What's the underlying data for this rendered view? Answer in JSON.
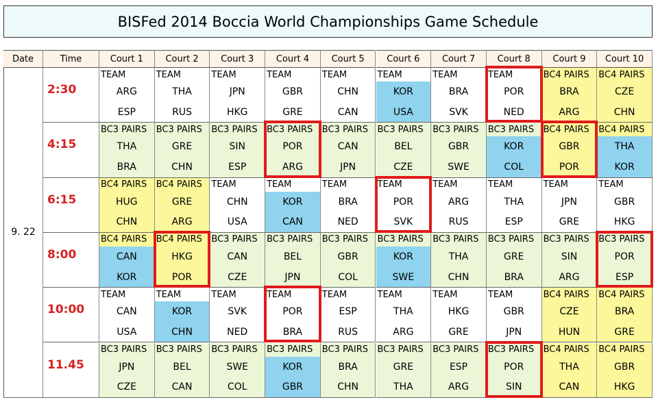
{
  "title": "BISFed 2014 Boccia World Championships Game Schedule",
  "headers": [
    "Date",
    "Time",
    "Court 1",
    "Court 2",
    "Court 3",
    "Court 4",
    "Court 5",
    "Court 6",
    "Court 7",
    "Court 8",
    "Court 9",
    "Court 10"
  ],
  "date": "9. 22",
  "slots": [
    {
      "time": "2:30",
      "games": [
        {
          "category": "TEAM",
          "teams": [
            "ARG",
            "ESP"
          ]
        },
        {
          "category": "TEAM",
          "teams": [
            "THA",
            "RUS"
          ]
        },
        {
          "category": "TEAM",
          "teams": [
            "JPN",
            "HKG"
          ]
        },
        {
          "category": "TEAM",
          "teams": [
            "GBR",
            "GRE"
          ]
        },
        {
          "category": "TEAM",
          "teams": [
            "CHN",
            "CAN"
          ]
        },
        {
          "category": "TEAM",
          "teams": [
            "KOR",
            "USA"
          ],
          "highlight": true
        },
        {
          "category": "TEAM",
          "teams": [
            "BRA",
            "SVK"
          ]
        },
        {
          "category": "TEAM",
          "teams": [
            "POR",
            "NED"
          ],
          "marked": true
        },
        {
          "category": "BC4 PAIRS",
          "teams": [
            "BRA",
            "ARG"
          ]
        },
        {
          "category": "BC4 PAIRS",
          "teams": [
            "CZE",
            "CHN"
          ]
        }
      ]
    },
    {
      "time": "4:15",
      "games": [
        {
          "category": "BC3 PAIRS",
          "teams": [
            "THA",
            "BRA"
          ]
        },
        {
          "category": "BC3 PAIRS",
          "teams": [
            "GRE",
            "CHN"
          ]
        },
        {
          "category": "BC3 PAIRS",
          "teams": [
            "SIN",
            "ESP"
          ]
        },
        {
          "category": "BC3 PAIRS",
          "teams": [
            "POR",
            "ARG"
          ],
          "marked": true
        },
        {
          "category": "BC3 PAIRS",
          "teams": [
            "CAN",
            "JPN"
          ]
        },
        {
          "category": "BC3 PAIRS",
          "teams": [
            "BEL",
            "CZE"
          ]
        },
        {
          "category": "BC3 PAIRS",
          "teams": [
            "GBR",
            "SWE"
          ]
        },
        {
          "category": "BC3 PAIRS",
          "teams": [
            "KOR",
            "COL"
          ],
          "highlight": true
        },
        {
          "category": "BC4 PAIRS",
          "teams": [
            "GBR",
            "POR"
          ],
          "marked": true
        },
        {
          "category": "BC4 PAIRS",
          "teams": [
            "THA",
            "KOR"
          ],
          "highlight": true
        }
      ]
    },
    {
      "time": "6:15",
      "games": [
        {
          "category": "BC4 PAIRS",
          "teams": [
            "HUG",
            "CHN"
          ]
        },
        {
          "category": "BC4 PAIRS",
          "teams": [
            "GRE",
            "ARG"
          ]
        },
        {
          "category": "TEAM",
          "teams": [
            "CHN",
            "USA"
          ]
        },
        {
          "category": "TEAM",
          "teams": [
            "KOR",
            "CAN"
          ],
          "highlight": true
        },
        {
          "category": "TEAM",
          "teams": [
            "BRA",
            "NED"
          ]
        },
        {
          "category": "TEAM",
          "teams": [
            "POR",
            "SVK"
          ],
          "marked": true
        },
        {
          "category": "TEAM",
          "teams": [
            "ARG",
            "RUS"
          ]
        },
        {
          "category": "TEAM",
          "teams": [
            "THA",
            "ESP"
          ]
        },
        {
          "category": "TEAM",
          "teams": [
            "JPN",
            "GRE"
          ]
        },
        {
          "category": "TEAM",
          "teams": [
            "GBR",
            "HKG"
          ]
        }
      ]
    },
    {
      "time": "8:00",
      "games": [
        {
          "category": "BC4 PAIRS",
          "teams": [
            "CAN",
            "KOR"
          ],
          "highlight": true
        },
        {
          "category": "BC4 PAIRS",
          "teams": [
            "HKG",
            "POR"
          ],
          "marked": true
        },
        {
          "category": "BC3 PAIRS",
          "teams": [
            "CAN",
            "CZE"
          ]
        },
        {
          "category": "BC3 PAIRS",
          "teams": [
            "BEL",
            "JPN"
          ]
        },
        {
          "category": "BC3 PAIRS",
          "teams": [
            "GBR",
            "COL"
          ]
        },
        {
          "category": "BC3 PAIRS",
          "teams": [
            "KOR",
            "SWE"
          ],
          "highlight": true
        },
        {
          "category": "BC3 PAIRS",
          "teams": [
            "THA",
            "CHN"
          ]
        },
        {
          "category": "BC3 PAIRS",
          "teams": [
            "GRE",
            "BRA"
          ]
        },
        {
          "category": "BC3 PAIRS",
          "teams": [
            "SIN",
            "ARG"
          ]
        },
        {
          "category": "BC3 PAIRS",
          "teams": [
            "POR",
            "ESP"
          ],
          "marked": true
        }
      ]
    },
    {
      "time": "10:00",
      "games": [
        {
          "category": "TEAM",
          "teams": [
            "CAN",
            "USA"
          ]
        },
        {
          "category": "TEAM",
          "teams": [
            "KOR",
            "CHN"
          ],
          "highlight": true
        },
        {
          "category": "TEAM",
          "teams": [
            "SVK",
            "NED"
          ]
        },
        {
          "category": "TEAM",
          "teams": [
            "POR",
            "BRA"
          ],
          "marked": true
        },
        {
          "category": "TEAM",
          "teams": [
            "ESP",
            "RUS"
          ]
        },
        {
          "category": "TEAM",
          "teams": [
            "THA",
            "ARG"
          ]
        },
        {
          "category": "TEAM",
          "teams": [
            "HKG",
            "GRE"
          ]
        },
        {
          "category": "TEAM",
          "teams": [
            "GBR",
            "JPN"
          ]
        },
        {
          "category": "BC4 PAIRS",
          "teams": [
            "CZE",
            "HUN"
          ]
        },
        {
          "category": "BC4 PAIRS",
          "teams": [
            "BRA",
            "GRE"
          ]
        }
      ]
    },
    {
      "time": "11.45",
      "games": [
        {
          "category": "BC3 PAIRS",
          "teams": [
            "JPN",
            "CZE"
          ]
        },
        {
          "category": "BC3 PAIRS",
          "teams": [
            "BEL",
            "CAN"
          ]
        },
        {
          "category": "BC3 PAIRS",
          "teams": [
            "SWE",
            "COL"
          ]
        },
        {
          "category": "BC3 PAIRS",
          "teams": [
            "KOR",
            "GBR"
          ],
          "highlight": true
        },
        {
          "category": "BC3 PAIRS",
          "teams": [
            "BRA",
            "CHN"
          ]
        },
        {
          "category": "BC3 PAIRS",
          "teams": [
            "GRE",
            "THA"
          ]
        },
        {
          "category": "BC3 PAIRS",
          "teams": [
            "ESP",
            "ARG"
          ]
        },
        {
          "category": "BC3 PAIRS",
          "teams": [
            "POR",
            "SIN"
          ],
          "marked": true
        },
        {
          "category": "BC4 PAIRS",
          "teams": [
            "THA",
            "CAN"
          ]
        },
        {
          "category": "BC4 PAIRS",
          "teams": [
            "GBR",
            "HKG"
          ]
        }
      ]
    }
  ]
}
